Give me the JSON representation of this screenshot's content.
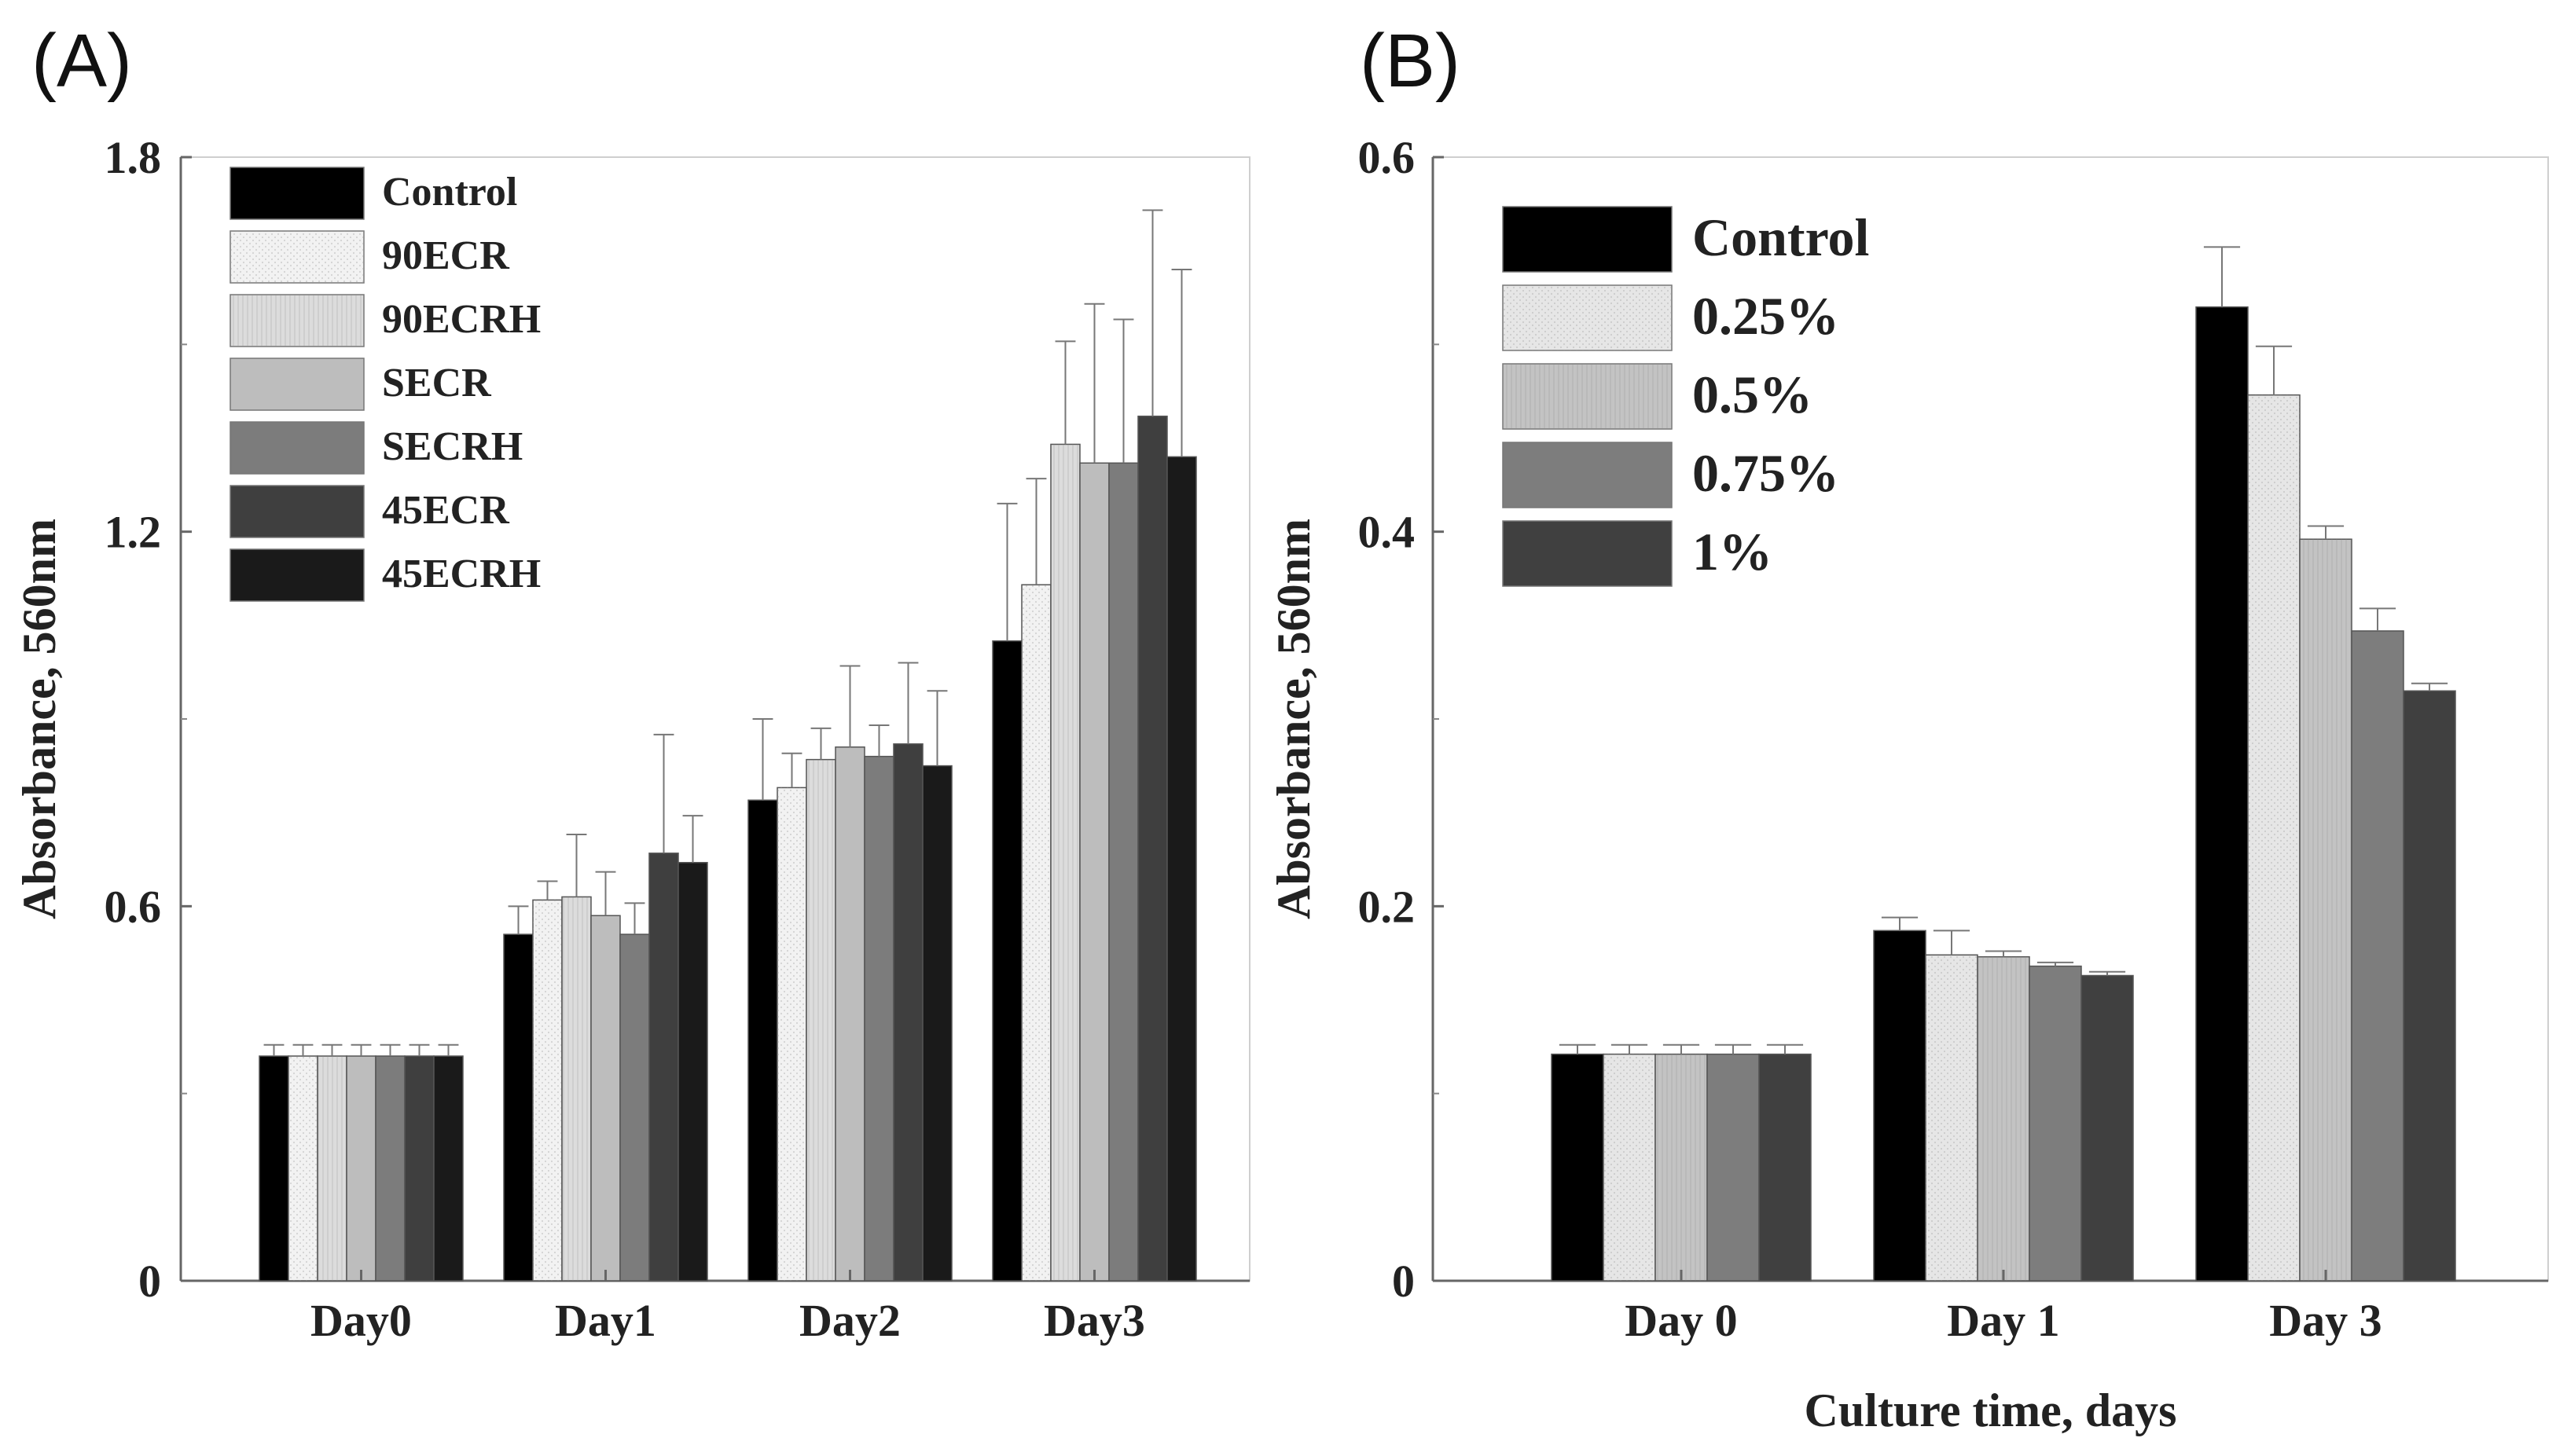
{
  "chart_data": [
    {
      "type": "bar",
      "panel_label": "(A)",
      "title": "",
      "xlabel": "",
      "ylabel": "Absorbance, 560nm",
      "ylim": [
        0,
        1.8
      ],
      "yticks": [
        "0",
        "0.6",
        "1.2",
        "1.8"
      ],
      "categories": [
        "Day0",
        "Day1",
        "Day2",
        "Day3"
      ],
      "legend_position": "top-left",
      "series": [
        {
          "name": "Control",
          "color": "#000000",
          "values": [
            0.36,
            0.555,
            0.77,
            1.025
          ],
          "errors": [
            0.018,
            0.045,
            0.13,
            0.22
          ]
        },
        {
          "name": "90ECR",
          "color": "#f2f2f2",
          "values": [
            0.36,
            0.61,
            0.79,
            1.115
          ],
          "errors": [
            0.018,
            0.03,
            0.055,
            0.17
          ]
        },
        {
          "name": "90ECRH",
          "color": "#dcdcdc",
          "values": [
            0.36,
            0.615,
            0.835,
            1.34
          ],
          "errors": [
            0.018,
            0.1,
            0.05,
            0.165
          ]
        },
        {
          "name": "SECR",
          "color": "#bdbdbd",
          "values": [
            0.36,
            0.585,
            0.855,
            1.31
          ],
          "errors": [
            0.018,
            0.07,
            0.13,
            0.255
          ]
        },
        {
          "name": "SECRH",
          "color": "#7c7c7c",
          "values": [
            0.36,
            0.555,
            0.84,
            1.31
          ],
          "errors": [
            0.018,
            0.05,
            0.05,
            0.23
          ]
        },
        {
          "name": "45ECR",
          "color": "#3f3f3f",
          "values": [
            0.36,
            0.685,
            0.86,
            1.385
          ],
          "errors": [
            0.018,
            0.19,
            0.13,
            0.33
          ]
        },
        {
          "name": "45ECRH",
          "color": "#1a1a1a",
          "values": [
            0.36,
            0.67,
            0.825,
            1.32
          ],
          "errors": [
            0.018,
            0.075,
            0.12,
            0.3
          ]
        }
      ]
    },
    {
      "type": "bar",
      "panel_label": "(B)",
      "title": "",
      "xlabel": "Culture time, days",
      "ylabel": "Absorbance, 560nm",
      "ylim": [
        0,
        0.6
      ],
      "yticks": [
        "0",
        "0.2",
        "0.4",
        "0.6"
      ],
      "categories": [
        "Day 0",
        "Day 1",
        "Day 3"
      ],
      "legend_position": "top-left",
      "series": [
        {
          "name": "Control",
          "color": "#000000",
          "values": [
            0.121,
            0.187,
            0.52
          ],
          "errors": [
            0.005,
            0.007,
            0.032
          ]
        },
        {
          "name": "0.25%",
          "color": "#e6e6e6",
          "values": [
            0.121,
            0.174,
            0.473
          ],
          "errors": [
            0.005,
            0.013,
            0.026
          ]
        },
        {
          "name": "0.5%",
          "color": "#c3c3c3",
          "values": [
            0.121,
            0.173,
            0.396
          ],
          "errors": [
            0.005,
            0.003,
            0.007
          ]
        },
        {
          "name": "0.75%",
          "color": "#7d7d7d",
          "values": [
            0.121,
            0.168,
            0.347
          ],
          "errors": [
            0.005,
            0.002,
            0.012
          ]
        },
        {
          "name": "1%",
          "color": "#404040",
          "values": [
            0.121,
            0.163,
            0.315
          ],
          "errors": [
            0.005,
            0.002,
            0.004
          ]
        }
      ]
    }
  ]
}
